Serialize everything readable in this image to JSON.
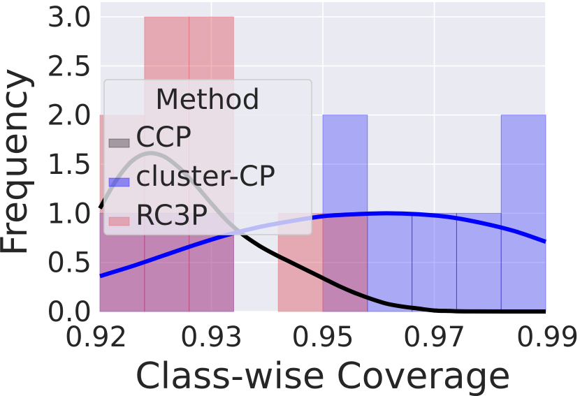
{
  "chart_data": {
    "type": "histogram",
    "xlabel": "Class-wise Coverage",
    "ylabel": "Frequency",
    "xlim": [
      0.92,
      0.99
    ],
    "ylim": [
      0,
      3.15
    ],
    "x_tick_labels": [
      "0.92",
      "0.93",
      "0.95",
      "0.97",
      "0.99"
    ],
    "y_tick_values": [
      0.0,
      0.5,
      1.0,
      1.5,
      2.0,
      2.5,
      3.0
    ],
    "y_tick_labels": [
      "0.0",
      "0.5",
      "1.0",
      "1.5",
      "2.0",
      "2.5",
      "3.0"
    ],
    "grid": true,
    "legend": {
      "title": "Method",
      "placement": "upper-left",
      "entries": [
        "CCP",
        "cluster-CP",
        "RC3P"
      ]
    },
    "series": [
      {
        "name": "CCP",
        "color": "#000000",
        "bins": [],
        "kde": [
          [
            0.92,
            1.05
          ],
          [
            0.9225,
            1.33
          ],
          [
            0.925,
            1.53
          ],
          [
            0.9275,
            1.61
          ],
          [
            0.93,
            1.58
          ],
          [
            0.9325,
            1.46
          ],
          [
            0.935,
            1.29
          ],
          [
            0.9375,
            1.1
          ],
          [
            0.94,
            0.92
          ],
          [
            0.9425,
            0.78
          ],
          [
            0.945,
            0.67
          ],
          [
            0.9475,
            0.58
          ],
          [
            0.95,
            0.5
          ],
          [
            0.9525,
            0.42
          ],
          [
            0.955,
            0.34
          ],
          [
            0.9575,
            0.26
          ],
          [
            0.96,
            0.19
          ],
          [
            0.9625,
            0.13
          ],
          [
            0.965,
            0.08
          ],
          [
            0.9675,
            0.05
          ],
          [
            0.97,
            0.03
          ],
          [
            0.9725,
            0.01
          ],
          [
            0.975,
            0.005
          ],
          [
            0.978,
            0.001
          ],
          [
            0.99,
            0.0
          ]
        ]
      },
      {
        "name": "cluster-CP",
        "color": "#0000ff",
        "bins": [
          {
            "x0": 0.92,
            "x1": 0.927,
            "count": 1
          },
          {
            "x0": 0.927,
            "x1": 0.934,
            "count": 1
          },
          {
            "x0": 0.934,
            "x1": 0.941,
            "count": 1
          },
          {
            "x0": 0.955,
            "x1": 0.962,
            "count": 2
          },
          {
            "x0": 0.962,
            "x1": 0.969,
            "count": 1
          },
          {
            "x0": 0.969,
            "x1": 0.976,
            "count": 1
          },
          {
            "x0": 0.976,
            "x1": 0.983,
            "count": 1
          },
          {
            "x0": 0.983,
            "x1": 0.99,
            "count": 2
          }
        ],
        "kde": [
          [
            0.92,
            0.36
          ],
          [
            0.925,
            0.46
          ],
          [
            0.93,
            0.57
          ],
          [
            0.935,
            0.68
          ],
          [
            0.94,
            0.78
          ],
          [
            0.945,
            0.86
          ],
          [
            0.95,
            0.92
          ],
          [
            0.955,
            0.97
          ],
          [
            0.96,
            0.99
          ],
          [
            0.965,
            1.0
          ],
          [
            0.97,
            0.99
          ],
          [
            0.975,
            0.96
          ],
          [
            0.98,
            0.9
          ],
          [
            0.985,
            0.82
          ],
          [
            0.99,
            0.71
          ]
        ]
      },
      {
        "name": "RC3P",
        "color": "#e05a66",
        "bins": [
          {
            "x0": 0.92,
            "x1": 0.927,
            "count": 2
          },
          {
            "x0": 0.927,
            "x1": 0.934,
            "count": 3
          },
          {
            "x0": 0.934,
            "x1": 0.941,
            "count": 3
          },
          {
            "x0": 0.948,
            "x1": 0.955,
            "count": 1
          },
          {
            "x0": 0.955,
            "x1": 0.962,
            "count": 1
          }
        ],
        "kde": []
      }
    ]
  }
}
